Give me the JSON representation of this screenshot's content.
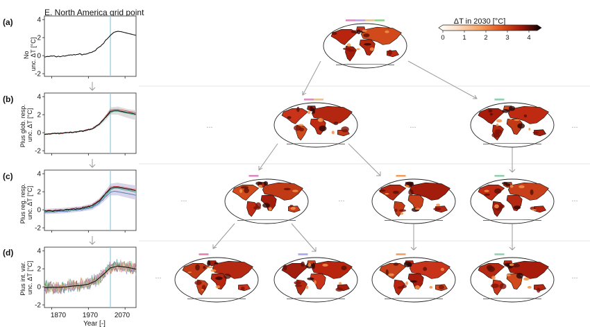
{
  "figure_title": "E. North America grid point",
  "panel_tags": [
    "(a)",
    "(b)",
    "(c)",
    "(d)"
  ],
  "ylabels": [
    [
      "No",
      "unc. ΔT [°C]"
    ],
    [
      "Plus glob. resp.",
      "unc. ΔT [°C]"
    ],
    [
      "Plus reg. resp.",
      "unc. ΔT [°C]"
    ],
    [
      "Plus int. var.",
      "unc. ΔT [°C]"
    ]
  ],
  "xlabel": "Year [-]",
  "xtick_labels": [
    "1870",
    "1970",
    "2070"
  ],
  "ytick_labels": [
    "-2",
    "0",
    "2",
    "4"
  ],
  "ellipsis": "...",
  "colorbar": {
    "title": "ΔT in 2030 [°C]",
    "tick_labels": [
      "0",
      "1",
      "2",
      "3",
      "4"
    ],
    "colors": [
      "#ffffff",
      "#fde0c5",
      "#f8a264",
      "#e2571d",
      "#a11a0b",
      "#3b0a05",
      "#000000"
    ]
  },
  "highlight_year_color": "#8ec9e0",
  "series_colors": [
    "#2f9e77",
    "#c44e52",
    "#4c72b0",
    "#dd8452",
    "#8172b3",
    "#937860",
    "#55a868",
    "#da8bc3",
    "#e5c494"
  ],
  "map_bar_colors": {
    "tier0": [
      "#da8bc3",
      "#c0a0e0",
      "#e5c494",
      "#8fd18f"
    ],
    "tier1_left": [
      "#da8bc3",
      "#e5c494"
    ],
    "tier1_right": [
      "#8fd1b0"
    ],
    "tier2": [
      [
        "#da8bc3"
      ],
      [
        "#f0a060"
      ],
      [
        "#8fd1b0"
      ]
    ],
    "tier3": [
      [
        "#e57fb0"
      ],
      [
        "#a6a6e8"
      ],
      [
        "#f0a060"
      ],
      [
        "#8fd1b0"
      ]
    ]
  },
  "chart_data": [
    {
      "type": "line",
      "panel": "(a)",
      "title": "E. North America grid point",
      "xlabel": "",
      "ylabel": "No unc. ΔT [°C]",
      "xlim": [
        1850,
        2100
      ],
      "ylim": [
        -2.3,
        4.4
      ],
      "yticks": [
        -2,
        0,
        2,
        4
      ],
      "vline_x": 2030,
      "series": [
        {
          "x": [
            1850,
            1860,
            1870,
            1880,
            1890,
            1900,
            1910,
            1920,
            1930,
            1940,
            1950,
            1960,
            1970,
            1980,
            1990,
            2000,
            2010,
            2020,
            2030,
            2040,
            2050,
            2060,
            2070,
            2080,
            2090,
            2100
          ],
          "values": [
            -0.15,
            -0.1,
            -0.05,
            -0.1,
            -0.1,
            -0.05,
            0.0,
            0.05,
            0.1,
            0.15,
            0.15,
            0.15,
            0.25,
            0.4,
            0.6,
            0.95,
            1.3,
            1.8,
            2.25,
            2.6,
            2.7,
            2.65,
            2.55,
            2.45,
            2.35,
            2.25
          ]
        }
      ]
    },
    {
      "type": "line",
      "panel": "(b)",
      "xlabel": "",
      "ylabel": "Plus glob. resp. unc. ΔT [°C]",
      "xlim": [
        1850,
        2100
      ],
      "ylim": [
        -2.3,
        4.4
      ],
      "yticks": [
        -2,
        0,
        2,
        4
      ],
      "vline_x": 2030,
      "band": {
        "x": [
          1850,
          1900,
          1950,
          1980,
          2000,
          2020,
          2030,
          2050,
          2080,
          2100
        ],
        "lower": [
          -0.2,
          -0.1,
          0.1,
          0.3,
          0.75,
          1.5,
          2.0,
          2.0,
          1.6,
          1.4
        ],
        "upper": [
          -0.1,
          0.0,
          0.2,
          0.5,
          1.1,
          2.1,
          2.8,
          2.9,
          2.6,
          2.5
        ]
      },
      "series": [
        {
          "x": [
            1850,
            1900,
            1950,
            1980,
            2000,
            2020,
            2030,
            2040,
            2050,
            2070,
            2090,
            2100
          ],
          "values": [
            -0.15,
            -0.05,
            0.15,
            0.4,
            0.95,
            1.8,
            2.2,
            2.4,
            2.4,
            2.2,
            2.05,
            1.95
          ]
        },
        {
          "x": [
            1850,
            1900,
            1950,
            1980,
            2000,
            2020,
            2030,
            2040,
            2050,
            2070,
            2090,
            2100
          ],
          "values": [
            -0.15,
            -0.05,
            0.15,
            0.45,
            1.0,
            1.95,
            2.5,
            2.6,
            2.6,
            2.45,
            2.3,
            2.2
          ]
        },
        {
          "x": [
            1850,
            1900,
            1950,
            1980,
            2000,
            2020,
            2030,
            2040,
            2050,
            2070,
            2090,
            2100
          ],
          "values": [
            -0.15,
            -0.05,
            0.15,
            0.4,
            0.95,
            1.85,
            2.35,
            2.45,
            2.45,
            2.3,
            2.15,
            2.05
          ]
        }
      ]
    },
    {
      "type": "line",
      "panel": "(c)",
      "xlabel": "",
      "ylabel": "Plus reg. resp. unc. ΔT [°C]",
      "xlim": [
        1850,
        2100
      ],
      "ylim": [
        -2.3,
        4.4
      ],
      "yticks": [
        -2,
        0,
        2,
        4
      ],
      "vline_x": 2030,
      "band": {
        "x": [
          1850,
          1900,
          1950,
          1980,
          2000,
          2020,
          2030,
          2050,
          2080,
          2100
        ],
        "lower": [
          -0.5,
          -0.4,
          -0.2,
          0.0,
          0.5,
          1.2,
          1.6,
          1.6,
          1.3,
          1.1
        ],
        "upper": [
          0.1,
          0.2,
          0.4,
          0.7,
          1.3,
          2.3,
          2.9,
          3.0,
          2.8,
          2.7
        ]
      },
      "series": [
        {
          "x": [
            1850,
            1900,
            1950,
            1980,
            2000,
            2020,
            2030,
            2040,
            2050,
            2070,
            2090,
            2100
          ],
          "values": [
            -0.2,
            -0.1,
            0.1,
            0.35,
            0.9,
            1.75,
            2.2,
            2.4,
            2.4,
            2.2,
            2.05,
            1.95
          ]
        },
        {
          "x": [
            1850,
            1900,
            1950,
            1980,
            2000,
            2020,
            2030,
            2040,
            2050,
            2070,
            2090,
            2100
          ],
          "values": [
            -0.1,
            0.0,
            0.25,
            0.5,
            1.1,
            2.0,
            2.5,
            2.6,
            2.6,
            2.45,
            2.3,
            2.25
          ]
        },
        {
          "x": [
            1850,
            1900,
            1950,
            1980,
            2000,
            2020,
            2030,
            2040,
            2050,
            2070,
            2090,
            2100
          ],
          "values": [
            -0.3,
            -0.2,
            0.0,
            0.25,
            0.75,
            1.55,
            1.95,
            2.05,
            2.0,
            1.85,
            1.7,
            1.6
          ]
        },
        {
          "x": [
            1850,
            1900,
            1950,
            1980,
            2000,
            2020,
            2030,
            2040,
            2050,
            2070,
            2090,
            2100
          ],
          "values": [
            -0.15,
            -0.05,
            0.15,
            0.45,
            1.0,
            1.9,
            2.35,
            2.5,
            2.5,
            2.35,
            2.2,
            2.1
          ]
        }
      ]
    },
    {
      "type": "line",
      "panel": "(d)",
      "xlabel": "Year [-]",
      "ylabel": "Plus int. var. unc. ΔT [°C]",
      "xlim": [
        1850,
        2100
      ],
      "ylim": [
        -2.3,
        4.4
      ],
      "yticks": [
        -2,
        0,
        2,
        4
      ],
      "xticks": [
        1870,
        1970,
        2070
      ],
      "vline_x": 2030,
      "series": [
        {
          "name": "",
          "x": [
            1850,
            1870,
            1890,
            1910,
            1930,
            1950,
            1970,
            1990,
            2010,
            2030,
            2050,
            2070,
            2090,
            2100
          ],
          "values": [
            -0.1,
            -0.05,
            -0.05,
            0.0,
            0.1,
            0.15,
            0.3,
            0.65,
            1.35,
            2.1,
            2.3,
            2.2,
            2.05,
            1.95
          ]
        }
      ]
    }
  ]
}
